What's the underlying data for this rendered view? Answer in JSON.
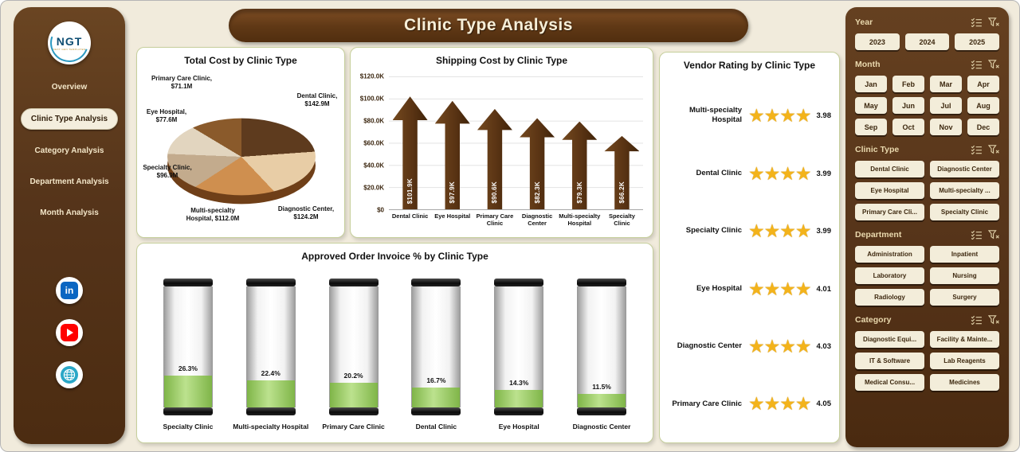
{
  "page": {
    "title": "Clinic Type Analysis"
  },
  "theme": {
    "background": "#f1ebdc",
    "sidebar_brown": "#57351a",
    "header_brown": "#5f3815",
    "panel_border": "#c6cf9c",
    "arrow_brown": "#5a3414",
    "star_gold": "#f3b31b",
    "gauge_green": "#7fb548",
    "button_cream": "#f3edda"
  },
  "sidebar": {
    "logo_text": "NGT",
    "logo_subtext": "NEXT GEN TEMPLATES",
    "items": [
      {
        "label": "Overview"
      },
      {
        "label": "Clinic Type Analysis"
      },
      {
        "label": "Category Analysis"
      },
      {
        "label": "Department Analysis"
      },
      {
        "label": "Month Analysis"
      }
    ],
    "social": [
      "linkedin",
      "youtube",
      "website"
    ]
  },
  "chart_data": [
    {
      "id": "total-cost-pie",
      "type": "pie",
      "title": "Total Cost by Clinic Type",
      "labels": [
        "Dental Clinic",
        "Diagnostic Center",
        "Multi-specialty Hospital",
        "Specialty Clinic",
        "Eye Hospital",
        "Primary Care Clinic"
      ],
      "values": [
        142.9,
        124.2,
        112.0,
        96.9,
        77.6,
        71.1
      ],
      "unit": "$M",
      "display": [
        "Dental Clinic, $142.9M",
        "Diagnostic Center, $124.2M",
        "Multi-specialty Hospital, $112.0M",
        "Specialty Clinic, $96.9M",
        "Eye Hospital, $77.6M",
        "Primary Care Clinic, $71.1M"
      ],
      "colors": [
        "#5e3b1e",
        "#e8cda6",
        "#cf8f4f",
        "#c3ab8d",
        "#e2d5bf",
        "#8a5a2b"
      ]
    },
    {
      "id": "shipping-cost-bars",
      "type": "bar",
      "title": "Shipping Cost by Clinic Type",
      "categories": [
        "Dental Clinic",
        "Eye Hospital",
        "Primary Care Clinic",
        "Diagnostic Center",
        "Multi-specialty Hospital",
        "Specialty Clinic"
      ],
      "values": [
        101.9,
        97.9,
        90.6,
        82.3,
        79.3,
        66.2
      ],
      "value_labels": [
        "$101.9K",
        "$97.9K",
        "$90.6K",
        "$82.3K",
        "$79.3K",
        "$66.2K"
      ],
      "ylim": [
        0,
        120
      ],
      "yticks": [
        "$120.0K",
        "$100.0K",
        "$80.0K",
        "$60.0K",
        "$40.0K",
        "$20.0K",
        "$0"
      ],
      "grid": true
    },
    {
      "id": "vendor-rating",
      "type": "table",
      "title": "Vendor Rating by Clinic Type",
      "categories": [
        "Multi-specialty Hospital",
        "Dental Clinic",
        "Specialty Clinic",
        "Eye Hospital",
        "Diagnostic Center",
        "Primary Care Clinic"
      ],
      "values": [
        "3.98",
        "3.99",
        "3.99",
        "4.01",
        "4.03",
        "4.05"
      ],
      "stars": "★★★★"
    },
    {
      "id": "approved-invoice-gauges",
      "type": "bar",
      "title": "Approved Order Invoice % by Clinic Type",
      "categories": [
        "Specialty Clinic",
        "Multi-specialty Hospital",
        "Primary Care Clinic",
        "Dental Clinic",
        "Eye Hospital",
        "Diagnostic Center"
      ],
      "values": [
        26.3,
        22.4,
        20.2,
        16.7,
        14.3,
        11.5
      ],
      "value_labels": [
        "26.3%",
        "22.4%",
        "20.2%",
        "16.7%",
        "14.3%",
        "11.5%"
      ]
    }
  ],
  "filters": {
    "year": {
      "label": "Year",
      "options": [
        "2023",
        "2024",
        "2025"
      ]
    },
    "month": {
      "label": "Month",
      "options": [
        "Jan",
        "Feb",
        "Mar",
        "Apr",
        "May",
        "Jun",
        "Jul",
        "Aug",
        "Sep",
        "Oct",
        "Nov",
        "Dec"
      ]
    },
    "clinic_type": {
      "label": "Clinic Type",
      "options": [
        "Dental Clinic",
        "Diagnostic Center",
        "Eye Hospital",
        "Multi-specialty ...",
        "Primary Care Cli...",
        "Specialty Clinic"
      ]
    },
    "department": {
      "label": "Department",
      "options": [
        "Administration",
        "Inpatient",
        "Laboratory",
        "Nursing",
        "Radiology",
        "Surgery"
      ]
    },
    "category": {
      "label": "Category",
      "options": [
        "Diagnostic Equi...",
        "Facility & Mainte...",
        "IT & Software",
        "Lab Reagents",
        "Medical Consu...",
        "Medicines"
      ]
    }
  }
}
